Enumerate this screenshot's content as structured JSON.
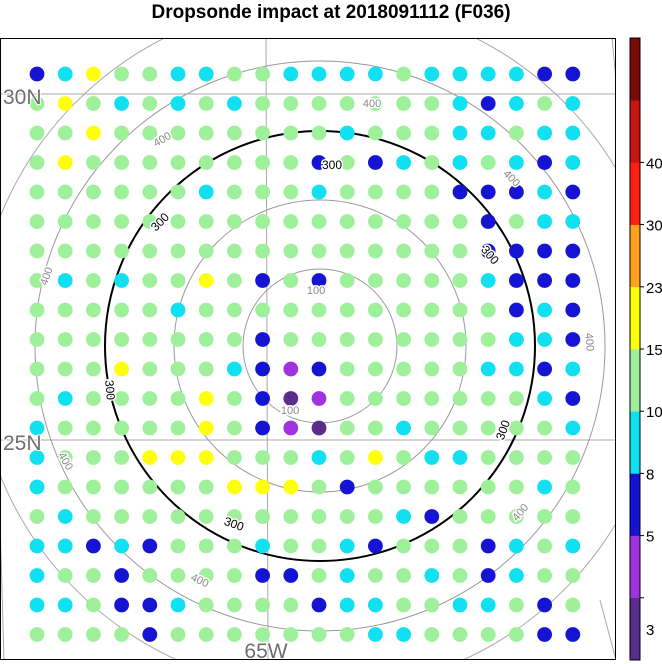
{
  "chart_data": {
    "type": "scatter",
    "title": "Dropsonde impact at 2018091112 (F036)",
    "lat_labels": [
      {
        "lat": 30,
        "text": "30N"
      },
      {
        "lat": 25,
        "text": "25N"
      }
    ],
    "lon_labels": [
      {
        "lon": -65,
        "text": "65W"
      }
    ],
    "range_rings": [
      {
        "value": 100,
        "label": "100",
        "emphasis": false
      },
      {
        "value": 200,
        "label": "",
        "emphasis": false
      },
      {
        "value": 300,
        "label": "300",
        "emphasis": true
      },
      {
        "value": 400,
        "label": "400",
        "emphasis": false
      }
    ],
    "colorbar": {
      "ticks": [
        "3",
        "5",
        "8",
        "10",
        "15",
        "23",
        "30",
        "40"
      ],
      "colors": [
        "#5a2d8c",
        "#a033e0",
        "#1414d2",
        "#11e0f0",
        "#9ef09a",
        "#ffff0a",
        "#ffa01e",
        "#ff2014",
        "#c81414",
        "#7a0a0a"
      ]
    },
    "grid_rows": 20,
    "grid_cols": 20,
    "class_codes": "0=#5a2d8c 1=#a033e0 2=#1414d2 3=#11e0f0 4=#9ef09a 5=#ffff0a",
    "values": [
      "23544334433334333322",
      "45434343444444432343",
      "44544444444344433433",
      "45444444442423434323",
      "44444434443444422232",
      "44444444444444442433",
      "44444444444444442222",
      "43434454242444443222",
      "44444344444444444232",
      "44444444244444444332",
      "44454443212444443323",
      "43444454201444444432",
      "34444454210443444443",
      "34445554443454334444",
      "34444445554244444434",
      "43444444444443244444",
      "33232444344324442343",
      "34424444224344342344",
      "33422344442334433424",
      "44442444444433444422"
    ]
  }
}
